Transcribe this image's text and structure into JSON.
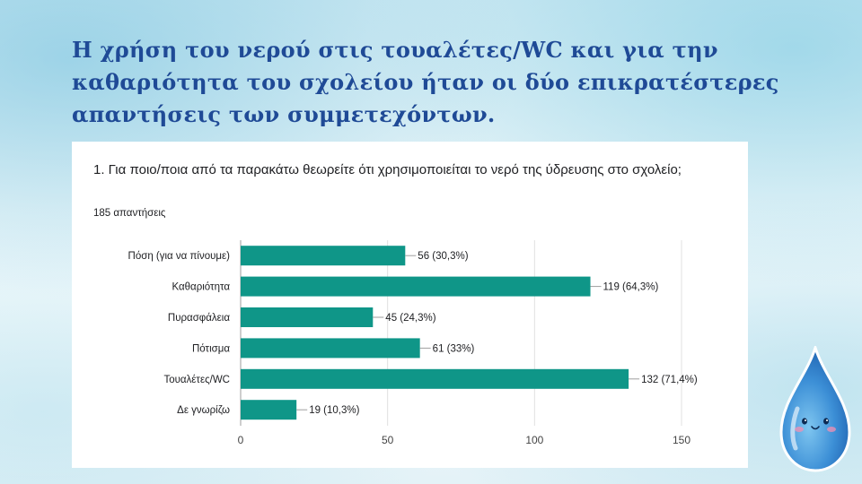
{
  "slide": {
    "title": "Η χρήση του νερού στις τουαλέτες/WC και για την καθαριότητα του σχολείου ήταν οι δύο επικρατέστερες απαντήσεις των συμμετεχόντων."
  },
  "colors": {
    "bar": "#0f9688",
    "title": "#1f4a96"
  },
  "chart_data": {
    "type": "bar",
    "orientation": "horizontal",
    "title": "1. Για ποιο/ποια από τα παρακάτω θεωρείτε ότι χρησιμοποιείται το νερό της ύδρευσης στο σχολείο;",
    "subtitle": "185 απαντήσεις",
    "categories": [
      "Πόση (για να πίνουμε)",
      "Καθαριότητα",
      "Πυρασφάλεια",
      "Πότισμα",
      "Τουαλέτες/WC",
      "Δε γνωρίζω"
    ],
    "values": [
      56,
      119,
      45,
      61,
      132,
      19
    ],
    "data_labels": [
      "56 (30,3%)",
      "119 (64,3%)",
      "45 (24,3%)",
      "61 (33%)",
      "132 (71,4%)",
      "19 (10,3%)"
    ],
    "xlim": [
      0,
      150
    ],
    "xticks": [
      "0",
      "50",
      "100",
      "150"
    ],
    "grid": true,
    "legend": "none"
  }
}
